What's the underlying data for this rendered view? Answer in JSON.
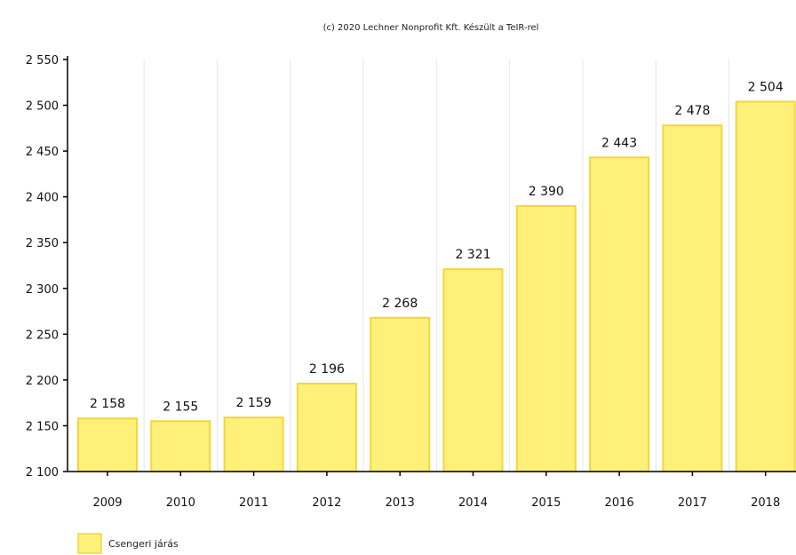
{
  "credit": "(c) 2020 Lechner Nonprofit Kft. Készült a TeIR-rel",
  "chart_data": {
    "type": "bar",
    "categories": [
      "2009",
      "2010",
      "2011",
      "2012",
      "2013",
      "2014",
      "2015",
      "2016",
      "2017",
      "2018"
    ],
    "series": [
      {
        "name": "Csengeri járás",
        "values": [
          2158,
          2155,
          2159,
          2196,
          2268,
          2321,
          2390,
          2443,
          2478,
          2504
        ],
        "labels": [
          "2 158",
          "2 155",
          "2 159",
          "2 196",
          "2 268",
          "2 321",
          "2 390",
          "2 443",
          "2 478",
          "2 504"
        ]
      }
    ],
    "ylim": [
      2100,
      2550
    ],
    "yticks": [
      2100,
      2150,
      2200,
      2250,
      2300,
      2350,
      2400,
      2450,
      2500,
      2550
    ],
    "ytick_labels": [
      "2 100",
      "2 150",
      "2 200",
      "2 250",
      "2 300",
      "2 350",
      "2 400",
      "2 450",
      "2 500",
      "2 550"
    ],
    "grid": "vertical",
    "legend": "bottom-left",
    "colors": {
      "bar_fill": "#fff07a",
      "bar_stroke": "#f3d63a",
      "axis": "#000000",
      "grid": "#e6e6e6"
    }
  }
}
